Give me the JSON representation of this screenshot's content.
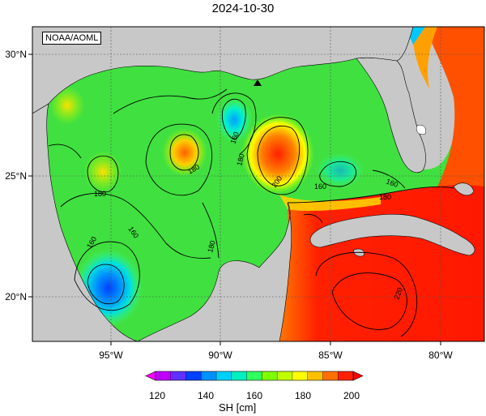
{
  "title": "2024-10-30",
  "credit": "NOAA/AOML",
  "lat_labels": [
    "30°N",
    "25°N",
    "20°N"
  ],
  "lon_labels": [
    "95°W",
    "90°W",
    "85°W",
    "80°W"
  ],
  "contour_labels": [
    "160",
    "160",
    "160",
    "160",
    "180",
    "180",
    "180",
    "180",
    "180",
    "200",
    "220"
  ],
  "colorbar": {
    "label": "SH [cm]",
    "ticks": [
      "120",
      "140",
      "160",
      "180",
      "200"
    ],
    "colors": [
      "#c000ff",
      "#6030ff",
      "#0040ff",
      "#0090ff",
      "#00d0ff",
      "#00f0c0",
      "#30ff60",
      "#80ff00",
      "#c0ff00",
      "#ffff00",
      "#ffc000",
      "#ff7000",
      "#ff2000"
    ]
  },
  "marker": "triangle-station",
  "colors": {
    "land": "#c8c8c8",
    "ocean_mid": "#40e040",
    "warm": "#ff2000"
  }
}
